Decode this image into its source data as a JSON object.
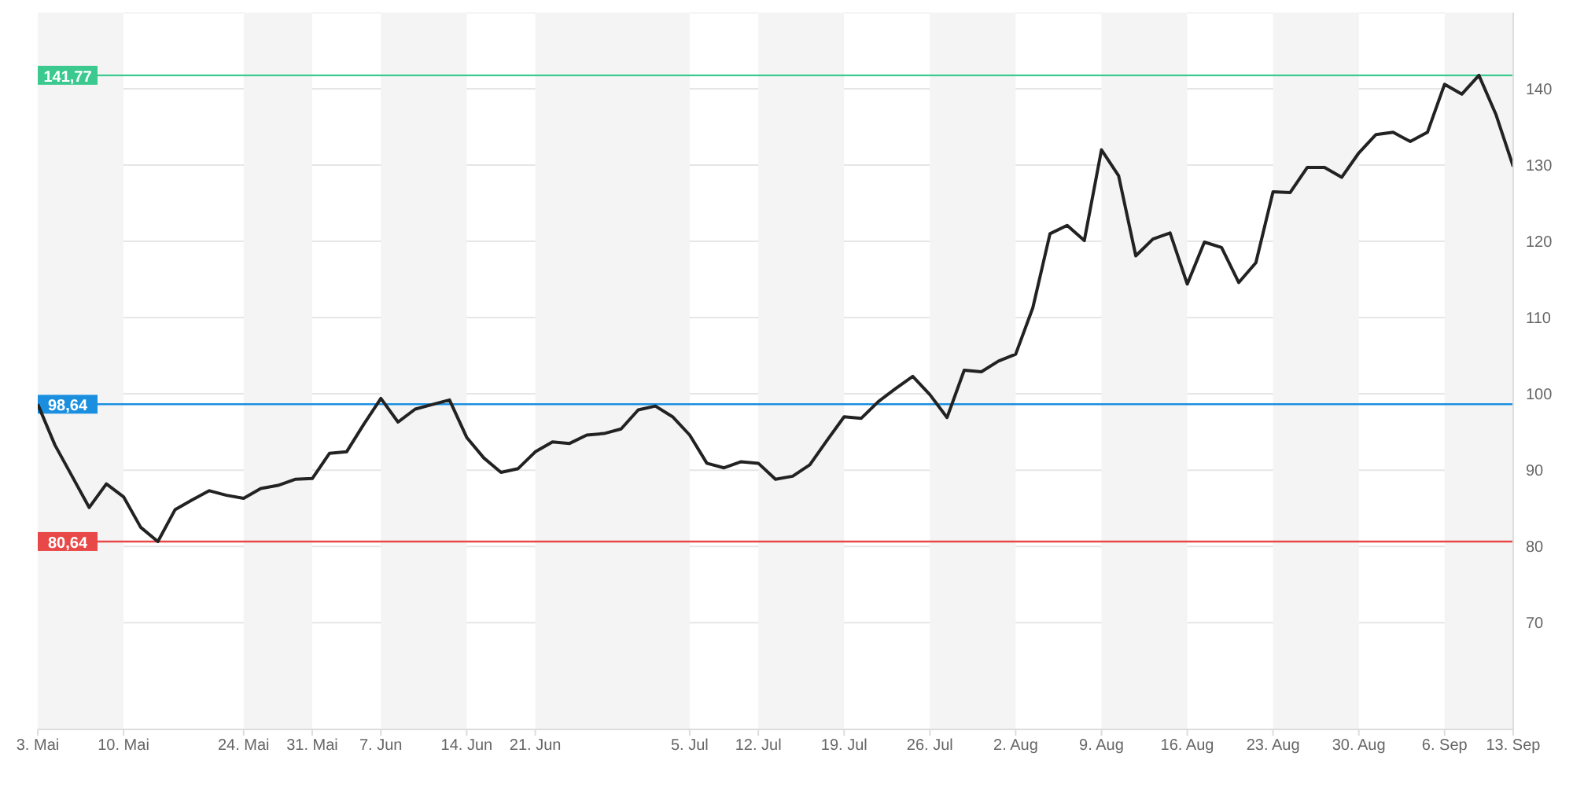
{
  "chart_data": {
    "type": "line",
    "categories": [
      "3. Mai",
      null,
      null,
      null,
      null,
      "10. Mai",
      null,
      null,
      null,
      null,
      null,
      null,
      "24. Mai",
      null,
      null,
      null,
      "31. Mai",
      null,
      null,
      null,
      "7. Jun",
      null,
      null,
      null,
      null,
      "14. Jun",
      null,
      null,
      null,
      "21. Jun",
      null,
      null,
      null,
      null,
      null,
      null,
      null,
      null,
      "5. Jul",
      null,
      null,
      null,
      "12. Jul",
      null,
      null,
      null,
      null,
      "19. Jul",
      null,
      null,
      null,
      null,
      "26. Jul",
      null,
      null,
      null,
      null,
      "2. Aug",
      null,
      null,
      null,
      null,
      "9. Aug",
      null,
      null,
      null,
      null,
      "16. Aug",
      null,
      null,
      null,
      null,
      "23. Aug",
      null,
      null,
      null,
      null,
      "30. Aug",
      null,
      null,
      null,
      null,
      "6. Sep",
      null,
      null,
      null,
      "13. Sep"
    ],
    "series": [
      {
        "color": "#222222",
        "values": [
          98.64,
          93.3,
          89.2,
          85.1,
          88.2,
          86.5,
          82.5,
          80.64,
          84.8,
          86.1,
          87.3,
          86.7,
          86.3,
          87.6,
          88.0,
          88.8,
          88.9,
          92.2,
          92.4,
          96.0,
          99.4,
          96.3,
          98.0,
          98.6,
          99.2,
          94.3,
          91.6,
          89.7,
          90.2,
          92.4,
          93.7,
          93.5,
          94.6,
          94.8,
          95.4,
          97.9,
          98.4,
          97.0,
          94.6,
          90.9,
          90.3,
          91.1,
          90.9,
          88.8,
          89.2,
          90.7,
          93.9,
          97.0,
          96.8,
          99.0,
          100.7,
          102.3,
          99.9,
          96.9,
          103.1,
          102.9,
          104.3,
          105.2,
          111.3,
          121.0,
          122.1,
          120.1,
          132.0,
          128.6,
          118.1,
          120.3,
          121.1,
          114.4,
          119.9,
          119.2,
          114.6,
          117.2,
          126.5,
          126.4,
          129.7,
          129.7,
          128.4,
          131.6,
          134.0,
          134.3,
          133.1,
          134.3,
          140.6,
          139.3,
          141.77,
          136.6,
          129.8
        ]
      }
    ],
    "ylim": [
      56,
      150
    ],
    "yticks": [
      70,
      80,
      90,
      100,
      110,
      120,
      130,
      140
    ],
    "grid": "y",
    "legend": false,
    "marker": "none",
    "line_style": "solid",
    "ref_lines": [
      {
        "axis": "y",
        "value": 141.77,
        "label": "141,77",
        "color": "#3cc98f"
      },
      {
        "axis": "y",
        "value": 98.64,
        "label": "98,64",
        "color": "#1a8fe0"
      },
      {
        "axis": "y",
        "value": 80.64,
        "label": "80,64",
        "color": "#e84848"
      }
    ],
    "bands": [
      {
        "axis": "x",
        "from": "3. Mai",
        "to": "10. Mai",
        "color": "#f4f4f4"
      },
      {
        "axis": "x",
        "from": "24. Mai",
        "to": "31. Mai",
        "color": "#f4f4f4"
      },
      {
        "axis": "x",
        "from": "7. Jun",
        "to": "14. Jun",
        "color": "#f4f4f4"
      },
      {
        "axis": "x",
        "from": "21. Jun",
        "to": "5. Jul",
        "color": "#f4f4f4"
      },
      {
        "axis": "x",
        "from": "12. Jul",
        "to": "19. Jul",
        "color": "#f4f4f4"
      },
      {
        "axis": "x",
        "from": "26. Jul",
        "to": "2. Aug",
        "color": "#f4f4f4"
      },
      {
        "axis": "x",
        "from": "9. Aug",
        "to": "16. Aug",
        "color": "#f4f4f4"
      },
      {
        "axis": "x",
        "from": "23. Aug",
        "to": "30. Aug",
        "color": "#f4f4f4"
      },
      {
        "axis": "x",
        "from": "6. Sep",
        "to": "13. Sep",
        "color": "#f4f4f4"
      }
    ]
  }
}
